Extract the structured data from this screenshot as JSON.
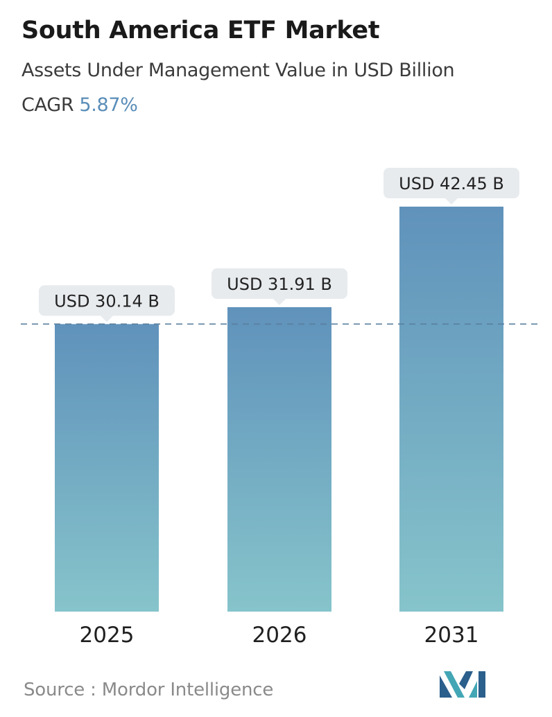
{
  "title": "South America ETF Market",
  "subtitle": "Assets Under Management Value in USD Billion",
  "cagr": {
    "label": "CAGR",
    "value": "5.87%"
  },
  "source": "Source :  Mordor Intelligence",
  "chart_data": {
    "type": "bar",
    "title": "South America ETF Market",
    "ylabel": "",
    "xlabel": "",
    "categories": [
      "2025",
      "2026",
      "2031"
    ],
    "values": [
      30.14,
      31.91,
      42.45
    ],
    "data_labels": [
      "USD 30.14 B",
      "USD 31.91 B",
      "USD 42.45 B"
    ],
    "ylim": [
      0,
      42.45
    ],
    "grid": false,
    "reference_line": 30.14,
    "colors": {
      "bar_top": "#6092bb",
      "bar_bottom": "#86c4cb",
      "label_bg": "#e7ebee",
      "dashed_line": "#5a7f9e"
    }
  }
}
